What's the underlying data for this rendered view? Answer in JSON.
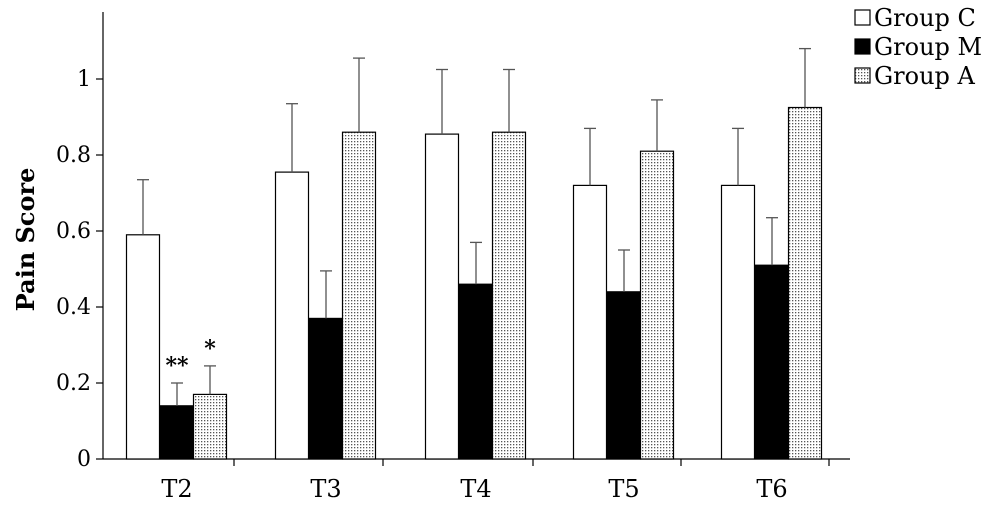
{
  "chart_data": {
    "type": "bar",
    "title": "",
    "xlabel": "",
    "ylabel": "Pain Score",
    "categories": [
      "T2",
      "T3",
      "T4",
      "T5",
      "T6"
    ],
    "series": [
      {
        "name": "Group C",
        "values": [
          0.59,
          0.755,
          0.855,
          0.72,
          0.72
        ],
        "errors": [
          0.145,
          0.18,
          0.17,
          0.15,
          0.15
        ],
        "fill": "#ffffff",
        "pattern": "none"
      },
      {
        "name": "Group M",
        "values": [
          0.14,
          0.37,
          0.46,
          0.44,
          0.51
        ],
        "errors": [
          0.06,
          0.125,
          0.11,
          0.11,
          0.125
        ],
        "fill": "#000000",
        "pattern": "none"
      },
      {
        "name": "Group A",
        "values": [
          0.17,
          0.86,
          0.86,
          0.81,
          0.925
        ],
        "errors": [
          0.075,
          0.195,
          0.165,
          0.135,
          0.155
        ],
        "fill": "#ffffff",
        "pattern": "dots"
      }
    ],
    "annotations": [
      {
        "category": "T2",
        "series": "Group M",
        "text": "**"
      },
      {
        "category": "T2",
        "series": "Group A",
        "text": "*"
      }
    ],
    "yticks": [
      "0",
      "0.2",
      "0.4",
      "0.6",
      "0.8",
      "1"
    ],
    "ylim": [
      0,
      1.2
    ],
    "grid": false,
    "legend_position": "top-right"
  }
}
